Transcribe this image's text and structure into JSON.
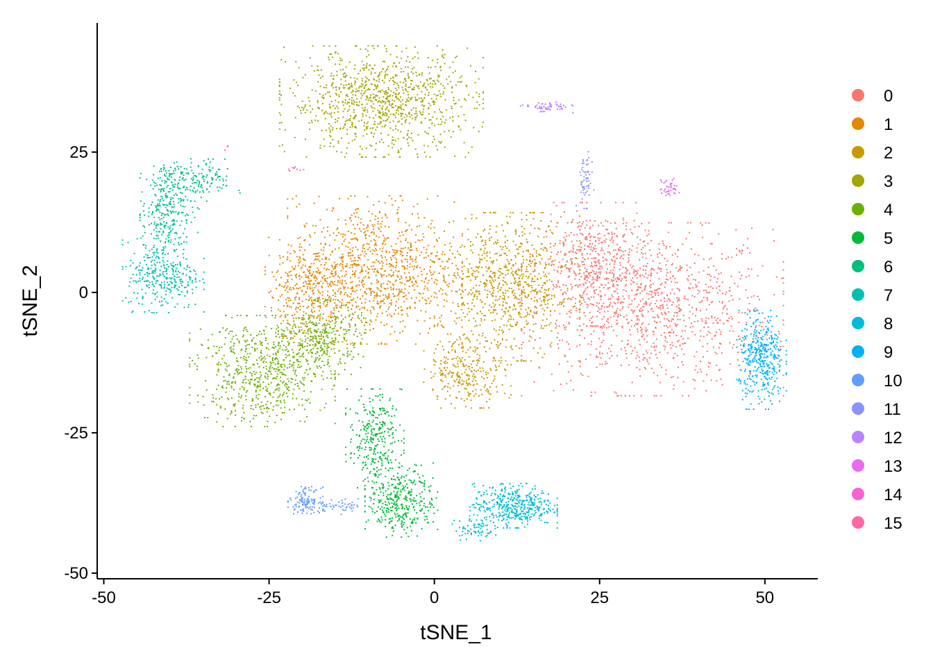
{
  "chart_data": {
    "type": "scatter",
    "xlabel": "tSNE_1",
    "ylabel": "tSNE_2",
    "xlim": [
      -51,
      58
    ],
    "ylim": [
      -51,
      48
    ],
    "x_ticks": [
      -50,
      -25,
      0,
      25,
      50
    ],
    "y_ticks": [
      -50,
      -25,
      0,
      25
    ],
    "x_tick_labels": [
      "-50",
      "-25",
      "0",
      "25",
      "50"
    ],
    "y_tick_labels": [
      "-50",
      "-25",
      "0",
      "25"
    ],
    "grid": false,
    "legend_position": "right",
    "legend": [
      "0",
      "1",
      "2",
      "3",
      "4",
      "5",
      "6",
      "7",
      "8",
      "9",
      "10",
      "11",
      "12",
      "13",
      "14",
      "15"
    ],
    "colors": [
      "#F8766D",
      "#E58700",
      "#C99800",
      "#A3A500",
      "#6BB100",
      "#00BA38",
      "#00BF7D",
      "#00C0AF",
      "#00BCD8",
      "#00B0F6",
      "#619CFF",
      "#8B93FF",
      "#B983FF",
      "#E76BF3",
      "#FD61D1",
      "#FF67A4"
    ],
    "clusters": [
      {
        "label": "0",
        "count": 1500,
        "blobs": [
          {
            "cx": 33,
            "cy": -3,
            "sx": 9,
            "sy": 7,
            "w": 0.7
          },
          {
            "cx": 24,
            "cy": 5,
            "sx": 4,
            "sy": 5,
            "w": 0.3
          }
        ]
      },
      {
        "label": "1",
        "count": 1300,
        "blobs": [
          {
            "cx": -9,
            "cy": 4,
            "sx": 6,
            "sy": 6,
            "w": 0.75
          },
          {
            "cx": -19,
            "cy": 1,
            "sx": 3,
            "sy": 4,
            "w": 0.25
          }
        ]
      },
      {
        "label": "2",
        "count": 1100,
        "blobs": [
          {
            "cx": 11,
            "cy": 1,
            "sx": 5,
            "sy": 6,
            "w": 0.75
          },
          {
            "cx": 5,
            "cy": -14,
            "sx": 3,
            "sy": 3,
            "w": 0.25
          }
        ]
      },
      {
        "label": "3",
        "count": 1000,
        "blobs": [
          {
            "cx": -8,
            "cy": 34,
            "sx": 7,
            "sy": 4.5,
            "w": 1
          }
        ]
      },
      {
        "label": "4",
        "count": 1000,
        "blobs": [
          {
            "cx": -26,
            "cy": -14,
            "sx": 5,
            "sy": 4.5,
            "w": 0.65
          },
          {
            "cx": -17,
            "cy": -8,
            "sx": 3,
            "sy": 3,
            "w": 0.35
          }
        ]
      },
      {
        "label": "5",
        "count": 650,
        "blobs": [
          {
            "cx": -9,
            "cy": -26,
            "sx": 2,
            "sy": 4,
            "w": 0.45
          },
          {
            "cx": -5,
            "cy": -37,
            "sx": 2.5,
            "sy": 3,
            "w": 0.55
          }
        ]
      },
      {
        "label": "6",
        "count": 300,
        "blobs": [
          {
            "cx": -36,
            "cy": 20,
            "sx": 3,
            "sy": 1.7,
            "w": 0.5
          },
          {
            "cx": -41,
            "cy": 14,
            "sx": 1.6,
            "sy": 4,
            "w": 0.5
          }
        ]
      },
      {
        "label": "7",
        "count": 450,
        "blobs": [
          {
            "cx": -41,
            "cy": 3,
            "sx": 2.8,
            "sy": 3,
            "w": 0.7
          },
          {
            "cx": -40,
            "cy": 15,
            "sx": 2,
            "sy": 4,
            "w": 0.3
          }
        ]
      },
      {
        "label": "8",
        "count": 500,
        "blobs": [
          {
            "cx": 12,
            "cy": -38,
            "sx": 3,
            "sy": 1.8,
            "w": 0.85
          },
          {
            "cx": 6,
            "cy": -42,
            "sx": 1.5,
            "sy": 1,
            "w": 0.15
          }
        ]
      },
      {
        "label": "9",
        "count": 400,
        "blobs": [
          {
            "cx": 49.5,
            "cy": -12,
            "sx": 1.7,
            "sy": 4,
            "w": 1
          }
        ]
      },
      {
        "label": "10",
        "count": 170,
        "blobs": [
          {
            "cx": -19.5,
            "cy": -37,
            "sx": 1.2,
            "sy": 1.1,
            "w": 0.7
          },
          {
            "cx": -14,
            "cy": -38,
            "sx": 2,
            "sy": 0.7,
            "w": 0.3
          }
        ]
      },
      {
        "label": "11",
        "count": 60,
        "blobs": [
          {
            "cx": 22.8,
            "cy": 20,
            "sx": 0.6,
            "sy": 2.3,
            "w": 1
          }
        ]
      },
      {
        "label": "12",
        "count": 60,
        "blobs": [
          {
            "cx": 17,
            "cy": 33,
            "sx": 1.8,
            "sy": 0.45,
            "w": 1
          }
        ]
      },
      {
        "label": "13",
        "count": 40,
        "blobs": [
          {
            "cx": 35.5,
            "cy": 18.5,
            "sx": 0.7,
            "sy": 0.8,
            "w": 1
          }
        ]
      },
      {
        "label": "14",
        "count": 8,
        "blobs": [
          {
            "cx": -21,
            "cy": 22,
            "sx": 1,
            "sy": 0.3,
            "w": 1
          }
        ]
      },
      {
        "label": "15",
        "count": 3,
        "blobs": [
          {
            "cx": -31,
            "cy": 26,
            "sx": 0.3,
            "sy": 0.3,
            "w": 1
          }
        ]
      }
    ]
  }
}
